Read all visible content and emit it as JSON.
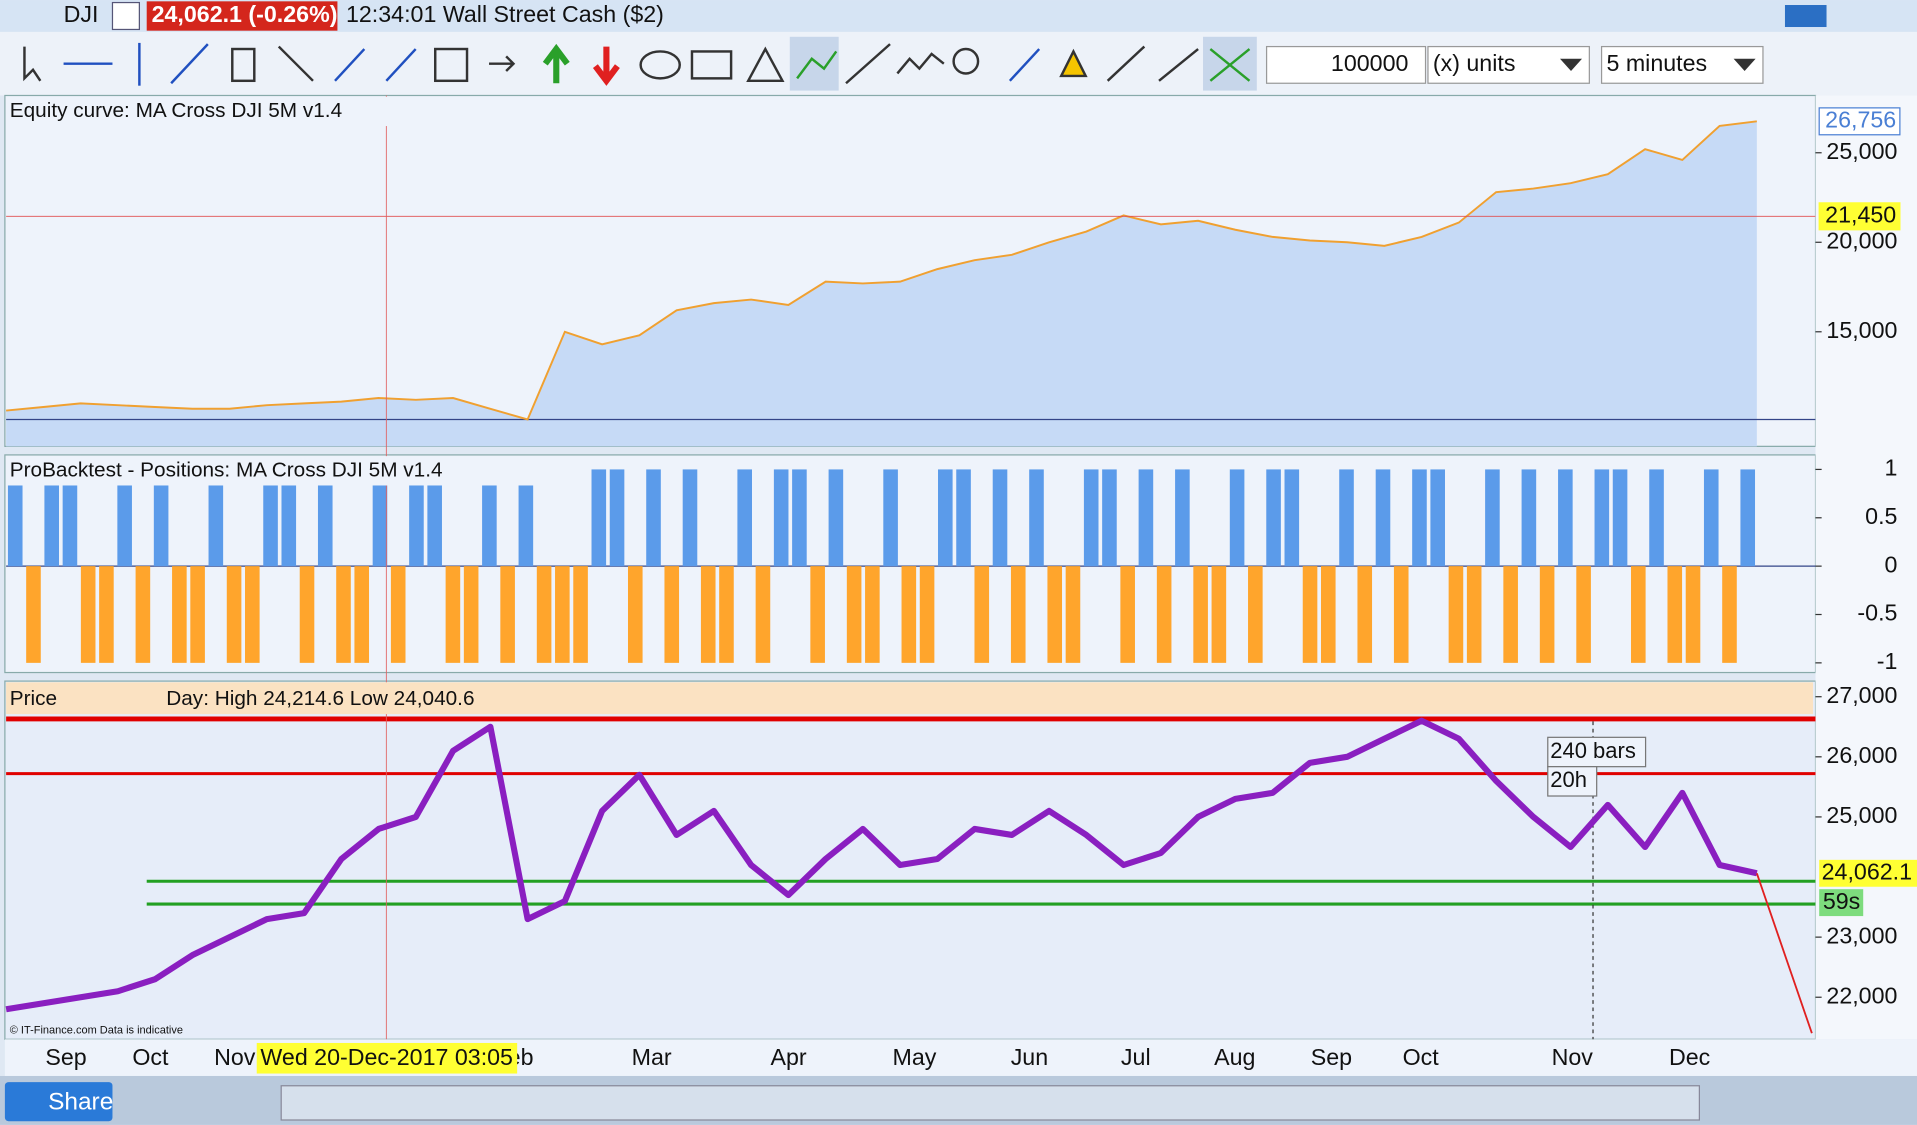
{
  "title_bar": {
    "symbol": "DJI",
    "price": "24,062.1 (-0.26%)",
    "session": "12:34:01 Wall Street Cash ($2)"
  },
  "toolbar": {
    "quantity": "100000",
    "unit": "(x) units",
    "timeframe": "5 minutes"
  },
  "chart_data": [
    {
      "type": "area",
      "title": "Equity curve: MA Cross DJI 5M v1.4",
      "color": "#f0a030",
      "fill": "#c6daf6",
      "values": [
        10600,
        10800,
        11000,
        10900,
        10800,
        10700,
        10700,
        10900,
        11000,
        11100,
        11300,
        11200,
        11300,
        10700,
        10100,
        15000,
        14300,
        14800,
        16200,
        16600,
        16800,
        16500,
        17800,
        17700,
        17800,
        18500,
        19000,
        19300,
        20000,
        20600,
        21500,
        21000,
        21200,
        20700,
        20300,
        20100,
        20000,
        19800,
        20300,
        21100,
        22800,
        23000,
        23300,
        23800,
        25200,
        24600,
        26500,
        26756
      ],
      "ylim": [
        8600,
        28200
      ],
      "yticks": [
        {
          "value": 25000,
          "label": "25,000"
        },
        {
          "value": 20000,
          "label": "20,000"
        },
        {
          "value": 15000,
          "label": "15,000"
        }
      ],
      "markers": [
        {
          "value": 26756,
          "label": "26,756",
          "color": "#4a7fd4"
        },
        {
          "value": 21450,
          "label": "21,450",
          "color": "#ffff33"
        }
      ]
    },
    {
      "type": "bar",
      "title": "ProBacktest - Positions: MA Cross DJI 5M v1.4",
      "colors": {
        "long": "#5b9bea",
        "short": "#ffa52c"
      },
      "values": [
        1,
        -1,
        1,
        1,
        -1,
        -1,
        1,
        -1,
        1,
        -1,
        -1,
        1,
        -1,
        -1,
        1,
        1,
        -1,
        1,
        -1,
        -1,
        1,
        -1,
        1,
        1,
        -1,
        -1,
        1,
        -1,
        1,
        -1,
        -1,
        -1,
        1,
        1,
        -1,
        1,
        -1,
        1,
        -1,
        -1,
        1,
        -1,
        1,
        1,
        -1,
        1,
        -1,
        -1,
        1,
        -1,
        -1,
        1,
        1,
        -1,
        1,
        -1,
        1,
        -1,
        -1,
        1,
        1,
        -1,
        1,
        -1,
        1,
        -1,
        -1,
        1,
        -1,
        1,
        1,
        -1,
        -1,
        1,
        -1,
        1,
        -1,
        1,
        1,
        -1,
        -1,
        1,
        -1,
        1,
        -1,
        1,
        -1,
        1,
        1,
        -1,
        1,
        -1,
        -1,
        1,
        -1,
        1
      ],
      "ylim": [
        -1.1,
        1.15
      ],
      "yticks": [
        1,
        0.5,
        0,
        -0.5,
        -1
      ]
    },
    {
      "type": "line",
      "title": "Price",
      "header": "Day: High 24,214.6 Low 24,040.6",
      "color": "#8a1fc0",
      "values": [
        21800,
        21900,
        22000,
        22100,
        22300,
        22700,
        23000,
        23300,
        23400,
        24300,
        24800,
        25000,
        26100,
        26500,
        23300,
        23600,
        25100,
        25700,
        24700,
        25100,
        24200,
        23700,
        24300,
        24800,
        24200,
        24300,
        24800,
        24700,
        25100,
        24700,
        24200,
        24400,
        25000,
        25300,
        25400,
        25900,
        26000,
        26300,
        26600,
        26300,
        25600,
        25000,
        24500,
        25200,
        24500,
        25400,
        24200,
        24062.1
      ],
      "ylim": [
        21300,
        27260
      ],
      "yticks": [
        {
          "value": 27000,
          "label": "27,000"
        },
        {
          "value": 26000,
          "label": "26,000"
        },
        {
          "value": 25000,
          "label": "25,000"
        },
        {
          "value": 23000,
          "label": "23,000"
        },
        {
          "value": 22000,
          "label": "22,000"
        }
      ],
      "levels": [
        {
          "value": 26630,
          "color": "#e00000"
        },
        {
          "value": 25720,
          "color": "#e00000"
        },
        {
          "value": 23930,
          "color": "#22a022"
        },
        {
          "value": 23550,
          "color": "#22a022"
        }
      ],
      "last": {
        "value": 24062.1,
        "label": "24,062.1",
        "color": "#ffff33"
      },
      "countdown": "59s",
      "annotations": [
        "240 bars",
        "20h"
      ],
      "x_labels": [
        "Sep",
        "Oct",
        "Nov",
        "Feb",
        "Mar",
        "Apr",
        "May",
        "Jun",
        "Jul",
        "Aug",
        "Sep",
        "Oct",
        "Nov",
        "Dec"
      ],
      "cursor_time": "Wed 20-Dec-2017 03:05"
    }
  ],
  "footer": {
    "share": "Share",
    "note": "© IT-Finance.com Data is indicative"
  }
}
